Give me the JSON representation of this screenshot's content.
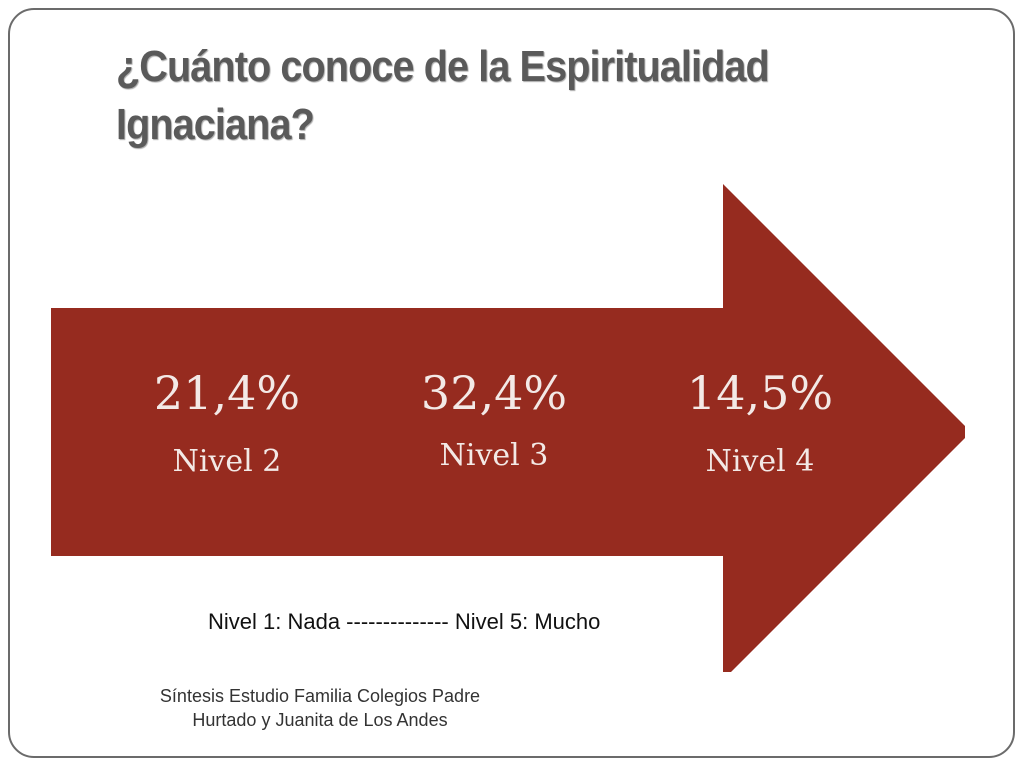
{
  "title": "¿Cuánto conoce de la Espiritualidad Ignaciana?",
  "colors": {
    "arrow": "#962B1F",
    "arrow_text": "#F3E9E6",
    "title": "#5A5A5A",
    "border": "#6B6B6B"
  },
  "stats": [
    {
      "value": "21,4%",
      "label": "Nivel 2"
    },
    {
      "value": "32,4%",
      "label": "Nivel 3"
    },
    {
      "value": "14,5%",
      "label": "Nivel 4"
    }
  ],
  "scale_note": "Nivel 1: Nada -------------- Nivel 5: Mucho",
  "source_note": "Síntesis  Estudio Familia Colegios Padre Hurtado y Juanita de Los Andes"
}
